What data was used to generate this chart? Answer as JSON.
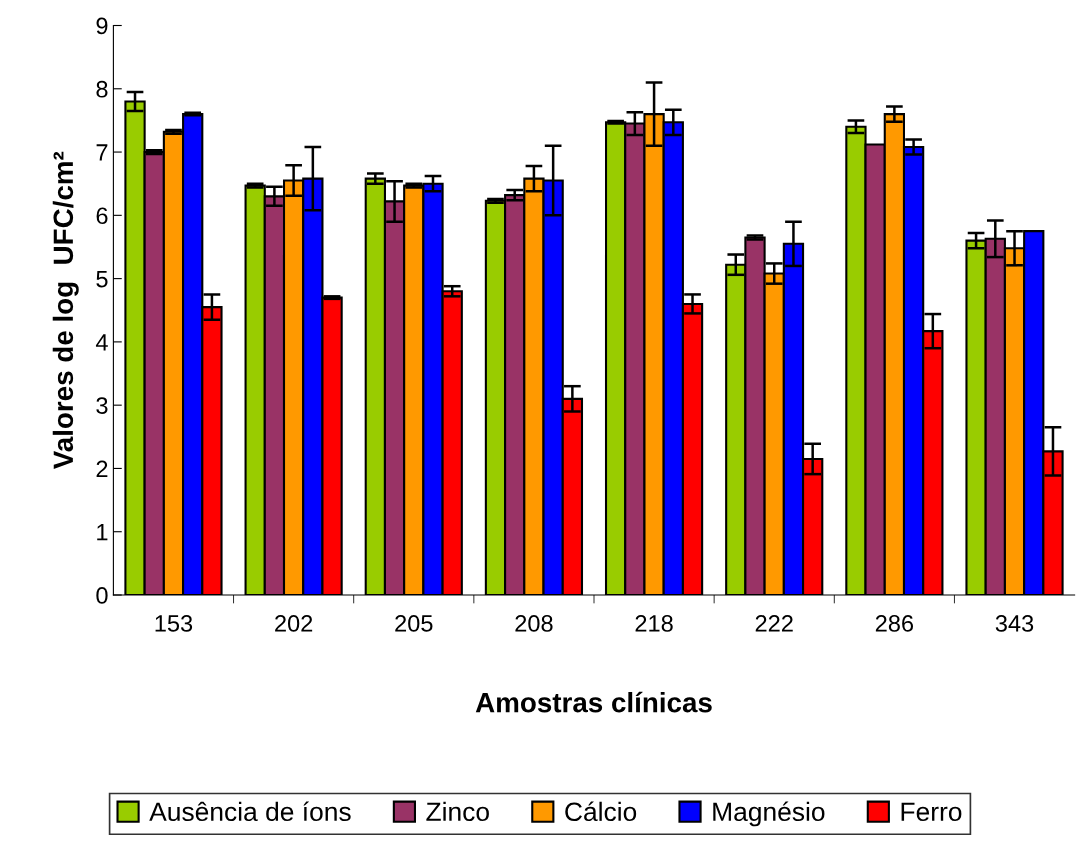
{
  "chart_data": {
    "type": "bar",
    "xlabel": "Amostras clínicas",
    "ylabel": "Valores de log  UFC/cm²",
    "categories": [
      "153",
      "202",
      "205",
      "208",
      "218",
      "222",
      "286",
      "343"
    ],
    "series": [
      {
        "name": "Ausência de íons",
        "color": "#99cc00",
        "values": [
          7.8,
          6.47,
          6.58,
          6.23,
          7.47,
          5.22,
          7.4,
          5.6
        ],
        "errors": [
          0.15,
          0.03,
          0.08,
          0.03,
          0.02,
          0.16,
          0.1,
          0.12
        ]
      },
      {
        "name": "Zinco",
        "color": "#993366",
        "values": [
          7.0,
          6.3,
          6.22,
          6.32,
          7.45,
          5.65,
          7.12,
          5.63
        ],
        "errors": [
          0.03,
          0.15,
          0.32,
          0.08,
          0.18,
          0.03,
          null,
          0.29
        ]
      },
      {
        "name": "Cálcio",
        "color": "#ff9900",
        "values": [
          7.32,
          6.55,
          6.47,
          6.58,
          7.6,
          5.08,
          7.6,
          5.48
        ],
        "errors": [
          0.03,
          0.24,
          0.03,
          0.2,
          0.5,
          0.16,
          0.12,
          0.27
        ]
      },
      {
        "name": "Magnésio",
        "color": "#0000ff",
        "values": [
          7.6,
          6.58,
          6.5,
          6.55,
          7.47,
          5.55,
          7.08,
          5.75
        ],
        "errors": [
          0.02,
          0.5,
          0.12,
          0.55,
          0.2,
          0.35,
          0.12,
          null
        ]
      },
      {
        "name": "Ferro",
        "color": "#ff0000",
        "values": [
          4.55,
          4.7,
          4.8,
          3.1,
          4.6,
          2.15,
          4.17,
          2.27
        ],
        "errors": [
          0.2,
          0.02,
          0.08,
          0.2,
          0.15,
          0.24,
          0.27,
          0.38
        ]
      }
    ],
    "ylim": [
      0,
      9
    ],
    "yticks": [
      0,
      1,
      2,
      3,
      4,
      5,
      6,
      7,
      8,
      9
    ],
    "grid": false,
    "legend": "bottom"
  }
}
